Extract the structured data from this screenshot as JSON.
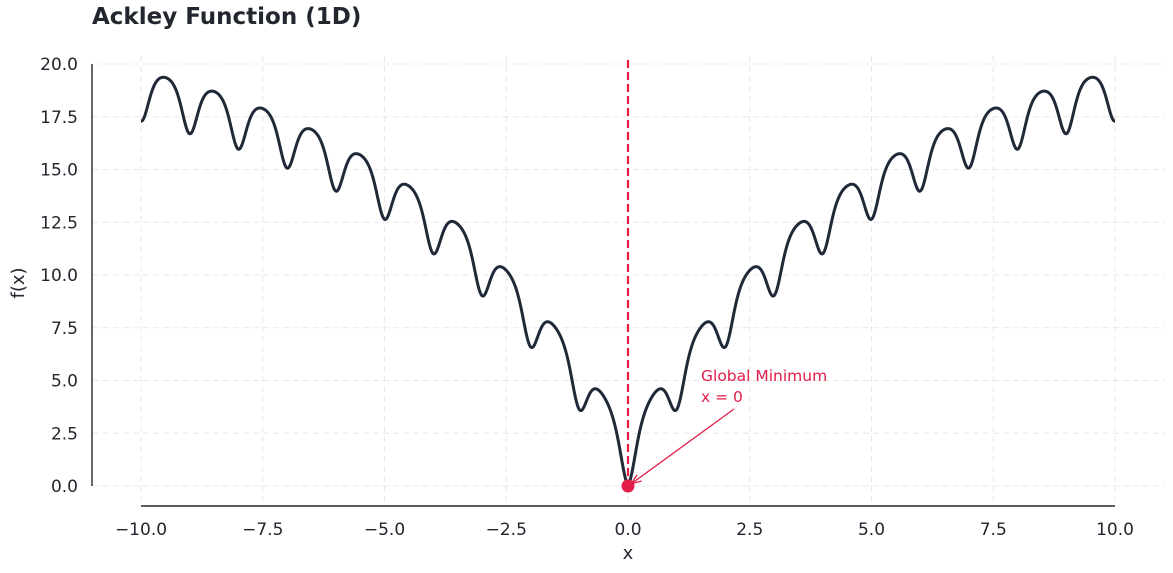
{
  "chart_data": {
    "type": "line",
    "title": "Ackley Function (1D)",
    "xlabel": "x",
    "ylabel": "f(x)",
    "xlim": [
      -10,
      10
    ],
    "ylim": [
      0,
      20
    ],
    "x_ticks": [
      "−10.0",
      "−7.5",
      "−5.0",
      "−2.5",
      "0.0",
      "2.5",
      "5.0",
      "7.5",
      "10.0"
    ],
    "y_ticks": [
      "0.0",
      "2.5",
      "5.0",
      "7.5",
      "10.0",
      "12.5",
      "15.0",
      "17.5",
      "20.0"
    ],
    "grid": true,
    "series": [
      {
        "function": "ackley-1d",
        "color": "#1f2937",
        "x": [
          -10,
          -9.5,
          -9,
          -8.5,
          -8,
          -7.5,
          -7,
          -6.5,
          -6,
          -5.5,
          -5,
          -4.5,
          -4,
          -3.5,
          -3,
          -2.5,
          -2,
          -1.5,
          -1,
          -0.5,
          0,
          0.5,
          1,
          1.5,
          2,
          2.5,
          3,
          3.5,
          4,
          4.5,
          5,
          5.5,
          6,
          6.5,
          7,
          7.5,
          8,
          8.5,
          9,
          9.5,
          10
        ],
        "y": [
          17.29,
          19.31,
          16.77,
          18.58,
          15.98,
          17.84,
          15.1,
          16.85,
          14.05,
          15.72,
          12.65,
          14.22,
          11.05,
          12.46,
          9.16,
          10.36,
          6.62,
          7.76,
          3.61,
          4.44,
          0.0,
          4.44,
          3.61,
          7.76,
          6.62,
          10.36,
          9.16,
          12.46,
          11.05,
          14.22,
          12.65,
          15.72,
          14.05,
          16.85,
          15.1,
          17.84,
          15.98,
          18.58,
          16.77,
          19.31,
          17.29
        ]
      }
    ],
    "vline": {
      "x": 0,
      "color": "#e11d48"
    },
    "marker": {
      "x": 0,
      "y": 0,
      "color": "#e11d48"
    },
    "annotation": {
      "lines": [
        "Global Minimum",
        "x = 0"
      ],
      "text_x": 1.5,
      "text_y": 4.2,
      "target_x": 0,
      "target_y": 0,
      "color": "#e11d48"
    }
  }
}
